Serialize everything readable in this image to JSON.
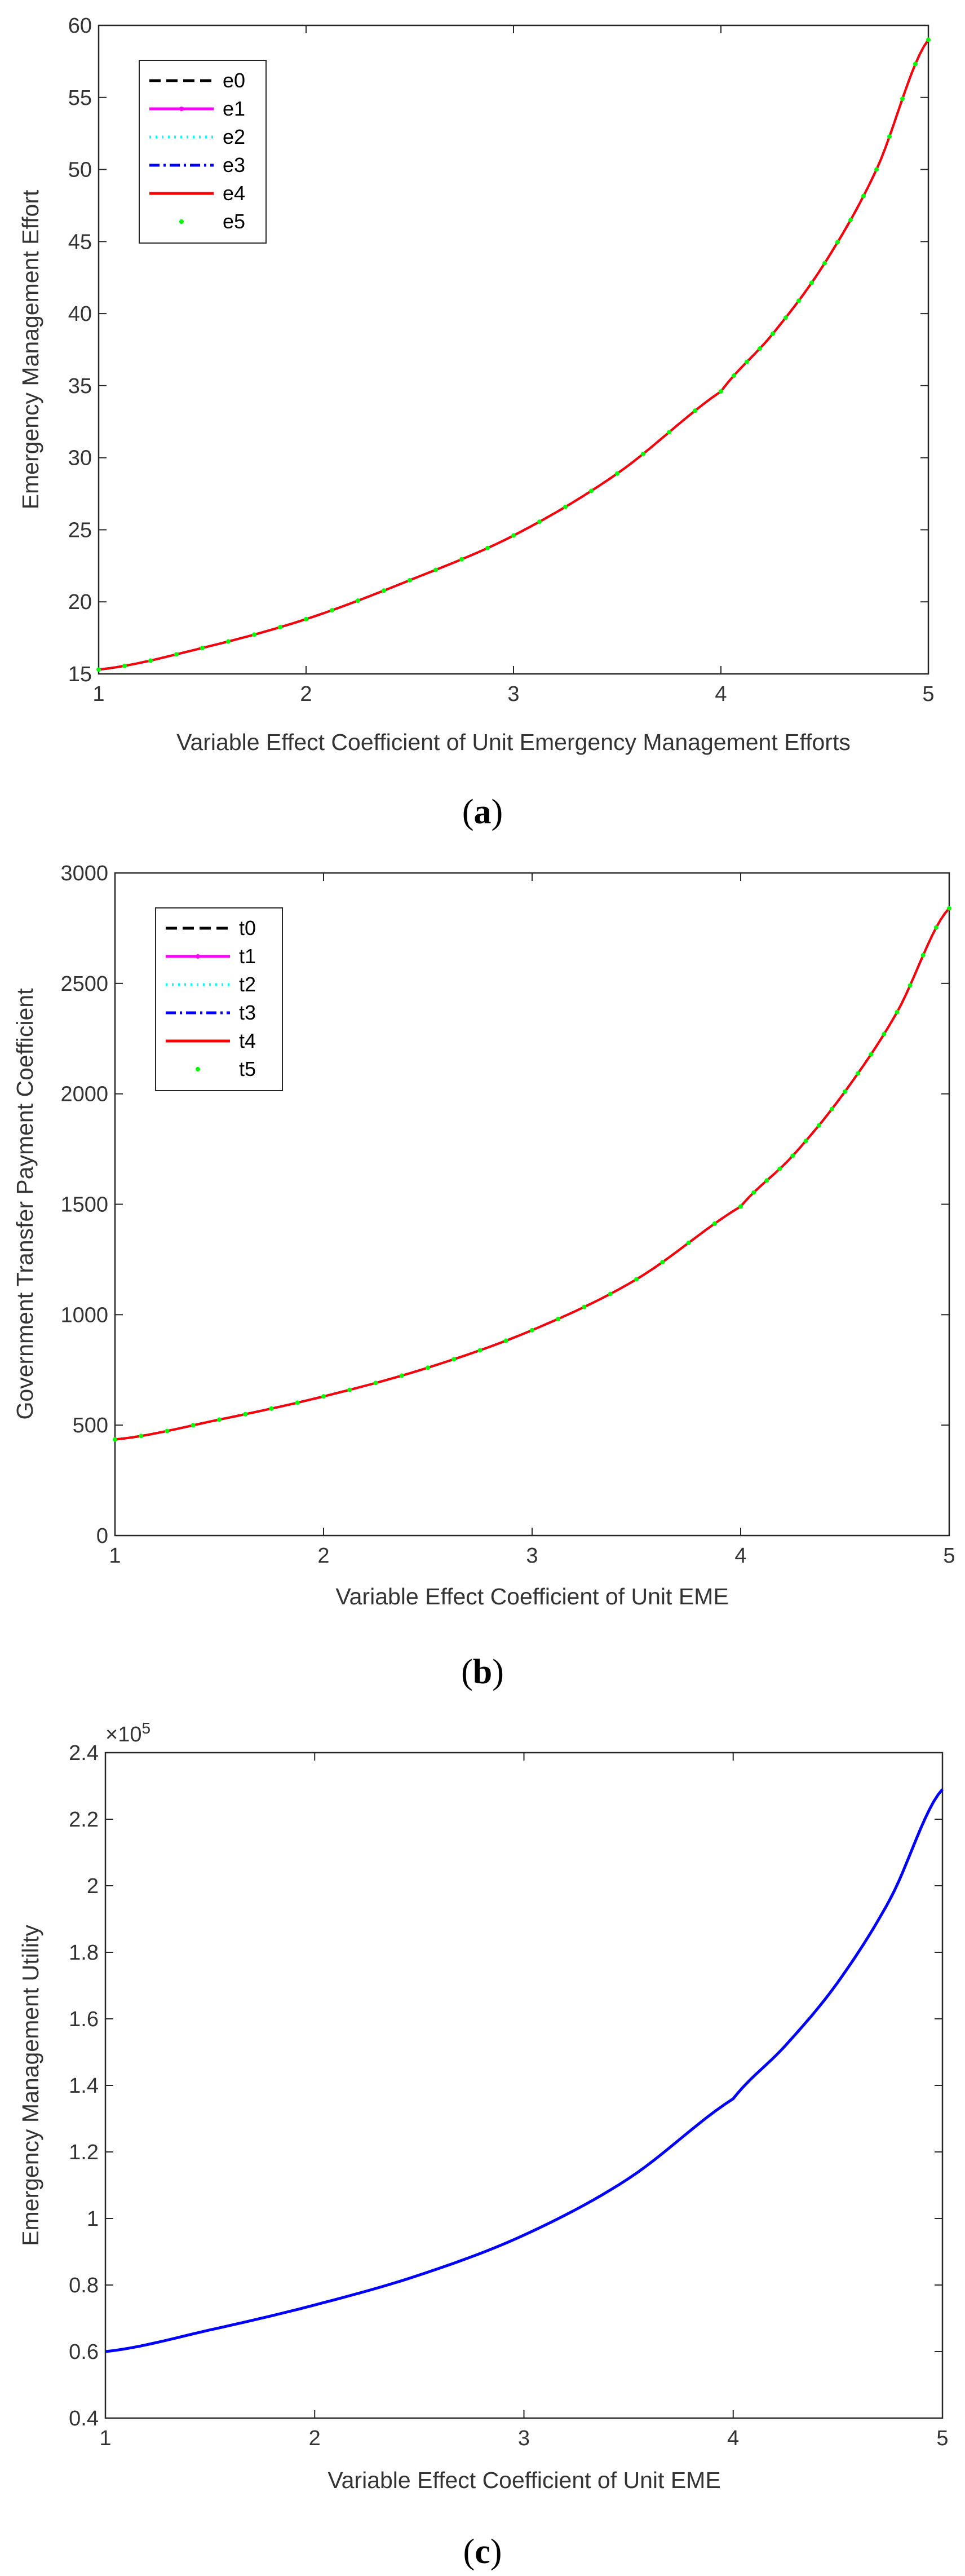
{
  "colors": {
    "e0_t0": "#000000",
    "e1_t1": "#ff00ff",
    "e2_t2": "#00ffff",
    "e3_t3": "#0000ff",
    "e4_t4": "#ff0000",
    "e5_t5": "#00ff00",
    "utility": "#0000ff"
  },
  "chart_data": [
    {
      "id": "a",
      "type": "line",
      "caption": {
        "open": "(",
        "letter": "a",
        "close": ")"
      },
      "xlabel": "Variable Effect Coefficient of Unit Emergency Management Efforts",
      "ylabel": "Emergency Management Effort",
      "xlim": [
        1,
        5
      ],
      "ylim": [
        15,
        60
      ],
      "xticks": [
        "1",
        "2",
        "3",
        "4",
        "5"
      ],
      "yticks": [
        "15",
        "20",
        "25",
        "30",
        "35",
        "40",
        "45",
        "50",
        "55",
        "60"
      ],
      "x": [
        1,
        1.5,
        2,
        2.5,
        3,
        3.5,
        4,
        4.25,
        4.5,
        4.75,
        5
      ],
      "series": [
        {
          "name": "e0",
          "style": "dash",
          "values": [
            15.3,
            16.8,
            18.8,
            21.5,
            24.6,
            28.9,
            34.6,
            38.6,
            43.5,
            50.0,
            59.0
          ]
        },
        {
          "name": "e1",
          "style": "solid-dot",
          "values": [
            15.3,
            16.8,
            18.8,
            21.5,
            24.6,
            28.9,
            34.6,
            38.6,
            43.5,
            50.0,
            59.0
          ]
        },
        {
          "name": "e2",
          "style": "dotted",
          "values": [
            15.3,
            16.8,
            18.8,
            21.5,
            24.6,
            28.9,
            34.6,
            38.6,
            43.5,
            50.0,
            59.0
          ]
        },
        {
          "name": "e3",
          "style": "dashdot",
          "values": [
            15.3,
            16.8,
            18.8,
            21.5,
            24.6,
            28.9,
            34.6,
            38.6,
            43.5,
            50.0,
            59.0
          ]
        },
        {
          "name": "e4",
          "style": "solid",
          "values": [
            15.3,
            16.8,
            18.8,
            21.5,
            24.6,
            28.9,
            34.6,
            38.6,
            43.5,
            50.0,
            59.0
          ]
        },
        {
          "name": "e5",
          "style": "markers",
          "values": [
            15.3,
            16.8,
            18.8,
            21.5,
            24.6,
            28.9,
            34.6,
            38.6,
            43.5,
            50.0,
            59.0
          ]
        }
      ],
      "legend_position": "top-left",
      "grid": false
    },
    {
      "id": "b",
      "type": "line",
      "caption": {
        "open": "(",
        "letter": "b",
        "close": ")"
      },
      "xlabel": "Variable Effect Coefficient of Unit EME",
      "ylabel": "Government Transfer Payment Coefficient",
      "xlim": [
        1,
        5
      ],
      "ylim": [
        0,
        3000
      ],
      "xticks": [
        "1",
        "2",
        "3",
        "4",
        "5"
      ],
      "yticks": [
        "0",
        "500",
        "1000",
        "1500",
        "2000",
        "2500",
        "3000"
      ],
      "x": [
        1,
        1.5,
        2,
        2.5,
        3,
        3.5,
        4,
        4.25,
        4.5,
        4.75,
        5
      ],
      "series": [
        {
          "name": "t0",
          "style": "dash",
          "values": [
            435,
            525,
            630,
            760,
            930,
            1160,
            1490,
            1720,
            2010,
            2370,
            2840
          ]
        },
        {
          "name": "t1",
          "style": "solid-dot",
          "values": [
            435,
            525,
            630,
            760,
            930,
            1160,
            1490,
            1720,
            2010,
            2370,
            2840
          ]
        },
        {
          "name": "t2",
          "style": "dotted",
          "values": [
            435,
            525,
            630,
            760,
            930,
            1160,
            1490,
            1720,
            2010,
            2370,
            2840
          ]
        },
        {
          "name": "t3",
          "style": "dashdot",
          "values": [
            435,
            525,
            630,
            760,
            930,
            1160,
            1490,
            1720,
            2010,
            2370,
            2840
          ]
        },
        {
          "name": "t4",
          "style": "solid",
          "values": [
            435,
            525,
            630,
            760,
            930,
            1160,
            1490,
            1720,
            2010,
            2370,
            2840
          ]
        },
        {
          "name": "t5",
          "style": "markers",
          "values": [
            435,
            525,
            630,
            760,
            930,
            1160,
            1490,
            1720,
            2010,
            2370,
            2840
          ]
        }
      ],
      "legend_position": "top-left",
      "grid": false
    },
    {
      "id": "c",
      "type": "line",
      "caption": {
        "open": "(",
        "letter": "c",
        "close": ")"
      },
      "xlabel": "Variable Effect Coefficient of Unit EME",
      "ylabel": "Emergency Management Utility",
      "exponent_label": "×10",
      "exponent_power": "5",
      "xlim": [
        1,
        5
      ],
      "ylim": [
        0.4,
        2.4
      ],
      "xticks": [
        "1",
        "2",
        "3",
        "4",
        "5"
      ],
      "yticks": [
        "0.4",
        "0.6",
        "0.8",
        "1",
        "1.2",
        "1.4",
        "1.6",
        "1.8",
        "2",
        "2.2",
        "2.4"
      ],
      "x": [
        1,
        1.5,
        2,
        2.5,
        3,
        3.5,
        4,
        4.25,
        4.5,
        4.75,
        5
      ],
      "series": [
        {
          "values": [
            0.6,
            0.665,
            0.74,
            0.83,
            0.95,
            1.12,
            1.36,
            1.52,
            1.71,
            1.96,
            2.29
          ]
        }
      ],
      "grid": false
    }
  ]
}
